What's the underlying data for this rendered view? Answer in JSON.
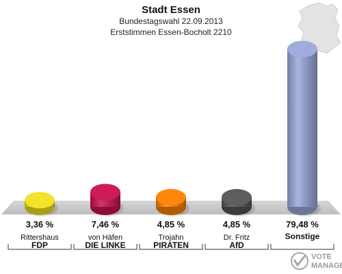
{
  "header": {
    "title": "Stadt Essen",
    "subtitle": "Bundestagswahl 22.09.2013",
    "subtitle2": "Erststimmen Essen-Bocholt 2210"
  },
  "logo": {
    "line1": "VOTE",
    "line2": "MANAGER"
  },
  "chart_data": {
    "type": "bar",
    "title": "Stadt Essen",
    "subtitle": "Bundestagswahl 22.09.2013 / Erststimmen Essen-Bocholt 2210",
    "categories": [
      "FDP",
      "DIE LINKE",
      "PIRATEN",
      "AfD",
      "Sonstige"
    ],
    "candidates": [
      "Rittershaus",
      "von Häfen",
      "Trojahn",
      "Dr. Fritz",
      ""
    ],
    "values": [
      3.36,
      7.46,
      4.85,
      4.85,
      79.48
    ],
    "value_labels": [
      "3,36 %",
      "7,46 %",
      "4,85 %",
      "4,85 %",
      "79,48 %"
    ],
    "colors": [
      "#f0e020",
      "#cc1050",
      "#ff8000",
      "#555555",
      "#9aa8dc"
    ],
    "ylim": [
      0,
      80
    ],
    "unit": "%",
    "grid": false,
    "legend": "none",
    "style": "3d-cylinder"
  }
}
